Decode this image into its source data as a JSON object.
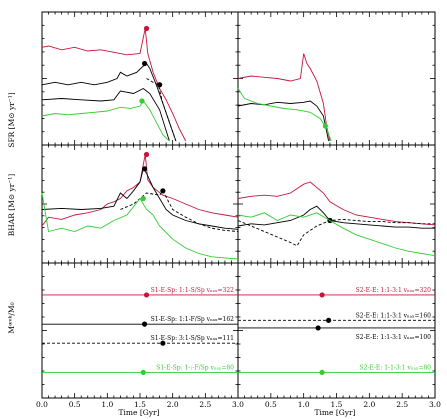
{
  "colors": {
    "red": "#c8143c",
    "black": "#000000",
    "green": "#33cc33"
  },
  "chart_data": {
    "type": "line",
    "xlabel": "Time [Gyr]",
    "xlim": [
      0.0,
      3.0
    ],
    "xticks": [
      "0.0",
      "0.5",
      "1.0",
      "1.5",
      "2.0",
      "2.5",
      "3.0"
    ],
    "xticks_right": [
      "0.5",
      "1.0",
      "1.5",
      "2.0",
      "2.5",
      "3.0"
    ],
    "row_labels": {
      "sfr": "SFR [M⊙ yr⁻¹]",
      "bhar": "BHAR [M⊙ yr⁻¹]",
      "mass": "Mᵆᵉᵏ/M₀"
    },
    "merger_labels": {
      "left": [
        {
          "text": "S1-E-Sp: 1:1-S/Sp vₙₐₓ=322",
          "color": "red",
          "level": 0.78
        },
        {
          "text": "S1-E-Sp: 1:1-F/Sp vₙₐₓ=162",
          "color": "black",
          "level": 0.55
        },
        {
          "text": "S1-E-Sp: 3:1-S/Sp vₙₐₓ=111",
          "color": "black",
          "level": 0.4
        },
        {
          "text": "S1-E-Sp: 1-:-F/Sp vₙₐₓ=80",
          "color": "green",
          "level": 0.17
        }
      ],
      "right": [
        {
          "text": "S2-E-E: 1:1-3:1 vₙₐₓ=320",
          "color": "red",
          "level": 0.78
        },
        {
          "text": "S2-E-E: 1:1-3:1 vₙₐₓ=160",
          "color": "black",
          "level": 0.58
        },
        {
          "text": "S2-E-E: 1:1-3:1 vₙₐₓ=100",
          "color": "black",
          "level": 0.41
        },
        {
          "text": "S2-E-E: 1-1-3:1 vₙₐₓ=80",
          "color": "green",
          "level": 0.17
        }
      ]
    },
    "sfr_left": [
      {
        "name": "red",
        "color": "red",
        "style": "solid",
        "x": [
          0.0,
          0.1,
          0.3,
          0.5,
          0.7,
          0.9,
          1.1,
          1.3,
          1.5,
          1.58,
          1.62,
          1.7,
          1.8,
          1.9,
          2.0,
          2.1,
          2.2
        ],
        "y": [
          0.75,
          0.76,
          0.73,
          0.75,
          0.72,
          0.73,
          0.71,
          0.69,
          0.7,
          0.9,
          0.7,
          0.55,
          0.42,
          0.33,
          0.22,
          0.1,
          0.0
        ],
        "marker_x": 1.6,
        "marker_y": 0.9
      },
      {
        "name": "black-solid",
        "color": "black",
        "style": "solid",
        "x": [
          0.0,
          0.2,
          0.4,
          0.6,
          0.8,
          1.0,
          1.15,
          1.2,
          1.3,
          1.45,
          1.55,
          1.6,
          1.65,
          1.75,
          1.85,
          1.95,
          2.05
        ],
        "y": [
          0.45,
          0.47,
          0.45,
          0.47,
          0.45,
          0.47,
          0.5,
          0.55,
          0.52,
          0.55,
          0.6,
          0.62,
          0.58,
          0.45,
          0.3,
          0.15,
          0.0
        ],
        "marker_x": 1.57,
        "marker_y": 0.62
      },
      {
        "name": "black-dashed",
        "color": "black",
        "style": "dashed",
        "x": [
          1.6,
          1.7,
          1.78,
          1.85,
          1.95,
          2.05
        ],
        "y": [
          0.5,
          0.47,
          0.45,
          0.3,
          0.15,
          0.0
        ],
        "marker_x": 1.8,
        "marker_y": 0.45
      },
      {
        "name": "black-thin",
        "color": "black",
        "style": "solid",
        "x": [
          0.0,
          0.3,
          0.6,
          0.9,
          1.1,
          1.2,
          1.4,
          1.55,
          1.65,
          1.8,
          1.95
        ],
        "y": [
          0.33,
          0.34,
          0.33,
          0.32,
          0.33,
          0.4,
          0.38,
          0.42,
          0.38,
          0.25,
          0.0
        ]
      },
      {
        "name": "green",
        "color": "green",
        "style": "solid",
        "x": [
          0.0,
          0.2,
          0.4,
          0.6,
          0.8,
          1.0,
          1.2,
          1.35,
          1.5,
          1.55,
          1.65,
          1.75,
          1.85,
          1.95
        ],
        "y": [
          0.2,
          0.22,
          0.21,
          0.22,
          0.23,
          0.24,
          0.27,
          0.26,
          0.28,
          0.32,
          0.25,
          0.15,
          0.05,
          0.0
        ],
        "marker_x": 1.53,
        "marker_y": 0.32
      }
    ],
    "sfr_right": [
      {
        "name": "red",
        "color": "red",
        "style": "solid",
        "x": [
          0.0,
          0.2,
          0.4,
          0.6,
          0.8,
          0.95,
          1.0,
          1.05,
          1.1,
          1.2,
          1.3,
          1.35,
          1.4
        ],
        "y": [
          0.5,
          0.52,
          0.51,
          0.5,
          0.48,
          0.5,
          0.7,
          0.62,
          0.58,
          0.48,
          0.3,
          0.12,
          0.0
        ]
      },
      {
        "name": "black-solid",
        "color": "black",
        "style": "solid",
        "x": [
          0.0,
          0.2,
          0.4,
          0.6,
          0.8,
          1.0,
          1.1,
          1.2,
          1.3,
          1.38
        ],
        "y": [
          0.28,
          0.3,
          0.29,
          0.31,
          0.3,
          0.31,
          0.32,
          0.28,
          0.2,
          0.0
        ]
      },
      {
        "name": "green",
        "color": "green",
        "style": "solid",
        "x": [
          0.0,
          0.1,
          0.3,
          0.5,
          0.7,
          0.9,
          1.1,
          1.25,
          1.35,
          1.42
        ],
        "y": [
          0.42,
          0.34,
          0.3,
          0.28,
          0.26,
          0.25,
          0.23,
          0.18,
          0.1,
          0.0
        ],
        "marker_x": 1.33,
        "marker_y": 0.12
      }
    ],
    "bhar_left": [
      {
        "name": "red",
        "color": "red",
        "style": "solid",
        "x": [
          0.0,
          0.1,
          0.3,
          0.5,
          0.7,
          0.9,
          1.0,
          1.1,
          1.2,
          1.3,
          1.4,
          1.5,
          1.58,
          1.62,
          1.7,
          1.85,
          2.0,
          2.2,
          2.4,
          2.6,
          2.8,
          3.0
        ],
        "y": [
          0.3,
          0.38,
          0.36,
          0.4,
          0.42,
          0.45,
          0.5,
          0.52,
          0.55,
          0.62,
          0.65,
          0.7,
          0.95,
          0.72,
          0.65,
          0.58,
          0.55,
          0.5,
          0.45,
          0.42,
          0.4,
          0.38
        ],
        "marker_x": 1.6,
        "marker_y": 0.95
      },
      {
        "name": "black-solid",
        "color": "black",
        "style": "solid",
        "x": [
          0.0,
          0.3,
          0.6,
          0.9,
          1.1,
          1.2,
          1.3,
          1.4,
          1.5,
          1.55,
          1.6,
          1.7,
          1.8,
          1.9,
          2.0,
          2.2,
          2.4,
          2.6,
          2.8,
          3.0
        ],
        "y": [
          0.45,
          0.46,
          0.45,
          0.46,
          0.48,
          0.6,
          0.55,
          0.62,
          0.7,
          0.82,
          0.78,
          0.65,
          0.55,
          0.45,
          0.4,
          0.35,
          0.32,
          0.3,
          0.28,
          0.27
        ],
        "marker_x": 1.57,
        "marker_y": 0.82
      },
      {
        "name": "black-dashed",
        "color": "black",
        "style": "dashed",
        "x": [
          1.2,
          1.4,
          1.6,
          1.8,
          1.85,
          2.0,
          2.2,
          2.4,
          2.6,
          2.8,
          3.0
        ],
        "y": [
          0.45,
          0.5,
          0.6,
          0.58,
          0.62,
          0.45,
          0.38,
          0.32,
          0.28,
          0.26,
          0.25
        ],
        "marker_x": 1.85,
        "marker_y": 0.62
      },
      {
        "name": "green",
        "color": "green",
        "style": "solid",
        "x": [
          0.0,
          0.1,
          0.3,
          0.5,
          0.7,
          0.9,
          1.1,
          1.3,
          1.5,
          1.6,
          1.7,
          1.8,
          2.0,
          2.2,
          2.4,
          2.6,
          2.8,
          3.0
        ],
        "y": [
          0.6,
          0.25,
          0.28,
          0.25,
          0.3,
          0.28,
          0.35,
          0.4,
          0.55,
          0.45,
          0.4,
          0.3,
          0.18,
          0.1,
          0.05,
          0.02,
          0.01,
          0.0
        ],
        "marker_x": 1.55,
        "marker_y": 0.55
      }
    ],
    "bhar_right": [
      {
        "name": "red",
        "color": "red",
        "style": "solid",
        "x": [
          0.0,
          0.2,
          0.4,
          0.6,
          0.8,
          1.0,
          1.1,
          1.2,
          1.3,
          1.4,
          1.6,
          1.8,
          2.0,
          2.2,
          2.4,
          2.6,
          2.8,
          3.0
        ],
        "y": [
          0.55,
          0.57,
          0.58,
          0.57,
          0.6,
          0.68,
          0.7,
          0.65,
          0.6,
          0.52,
          0.45,
          0.4,
          0.38,
          0.36,
          0.34,
          0.33,
          0.32,
          0.31
        ]
      },
      {
        "name": "black-solid",
        "color": "black",
        "style": "solid",
        "x": [
          0.0,
          0.2,
          0.4,
          0.6,
          0.8,
          1.0,
          1.1,
          1.2,
          1.3,
          1.4,
          1.6,
          1.8,
          2.0,
          2.2,
          2.4,
          2.6,
          2.8,
          3.0
        ],
        "y": [
          0.3,
          0.32,
          0.31,
          0.33,
          0.35,
          0.4,
          0.45,
          0.48,
          0.42,
          0.35,
          0.33,
          0.32,
          0.31,
          0.3,
          0.29,
          0.29,
          0.28,
          0.28
        ]
      },
      {
        "name": "black-dashed",
        "color": "black",
        "style": "dashed",
        "x": [
          0.0,
          0.2,
          0.4,
          0.6,
          0.8,
          0.9,
          1.0,
          1.2,
          1.4,
          1.6,
          1.8,
          2.0,
          2.2,
          2.4,
          2.6,
          2.8,
          3.0
        ],
        "y": [
          0.35,
          0.3,
          0.25,
          0.2,
          0.15,
          0.12,
          0.22,
          0.3,
          0.35,
          0.36,
          0.35,
          0.34,
          0.34,
          0.33,
          0.33,
          0.32,
          0.32
        ],
        "marker_x": 1.4,
        "marker_y": 0.35
      },
      {
        "name": "green",
        "color": "green",
        "style": "solid",
        "x": [
          0.0,
          0.2,
          0.4,
          0.6,
          0.8,
          1.0,
          1.2,
          1.4,
          1.6,
          1.8,
          2.0,
          2.2,
          2.4,
          2.6,
          2.8,
          3.0
        ],
        "y": [
          0.4,
          0.38,
          0.42,
          0.35,
          0.4,
          0.38,
          0.42,
          0.35,
          0.28,
          0.22,
          0.18,
          0.14,
          0.1,
          0.07,
          0.05,
          0.03
        ]
      }
    ],
    "mass_left": [
      {
        "color": "red",
        "style": "solid",
        "level": 0.78,
        "marker_x": 1.6
      },
      {
        "color": "black",
        "style": "solid",
        "level": 0.55,
        "marker_x": 1.57
      },
      {
        "color": "black",
        "style": "dashed",
        "level": 0.4,
        "marker_x": 1.85
      },
      {
        "color": "green",
        "style": "solid",
        "level": 0.17,
        "marker_x": 1.55
      }
    ],
    "mass_right": [
      {
        "color": "red",
        "style": "solid",
        "level": 0.78,
        "marker_x": 1.28
      },
      {
        "color": "black",
        "style": "dashed",
        "level": 0.58,
        "marker_x": 1.38
      },
      {
        "color": "black",
        "style": "solid",
        "level": 0.52,
        "marker_x": 1.22
      },
      {
        "color": "green",
        "style": "solid",
        "level": 0.17,
        "marker_x": 1.28
      }
    ]
  }
}
